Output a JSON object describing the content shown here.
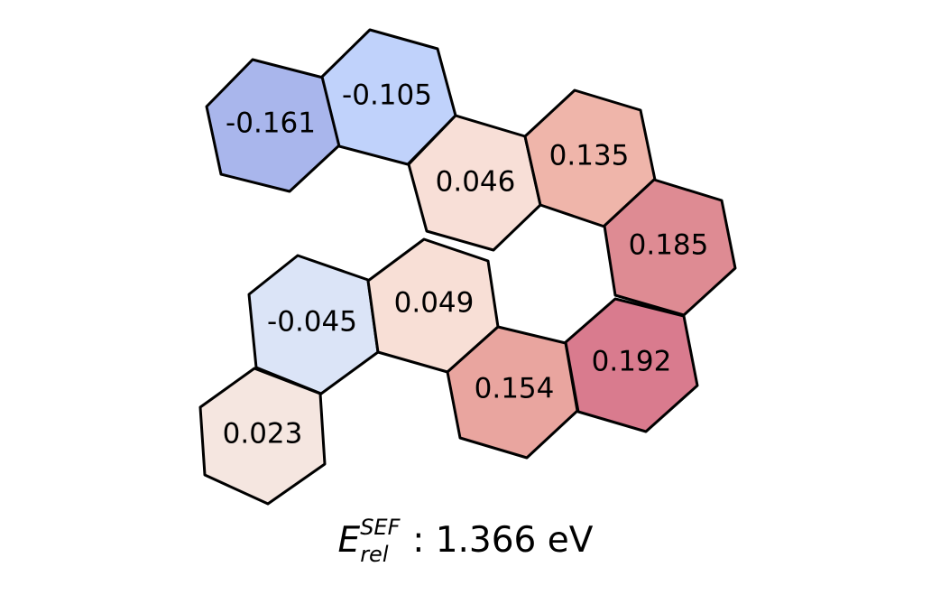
{
  "cells": [
    {
      "label": "-0.161",
      "value": -0.161,
      "color": "#a9b6ec"
    },
    {
      "label": "-0.105",
      "value": -0.105,
      "color": "#c0d2fb"
    },
    {
      "label": "0.046",
      "value": 0.046,
      "color": "#f8dfd7"
    },
    {
      "label": "0.135",
      "value": 0.135,
      "color": "#efb5aa"
    },
    {
      "label": "0.185",
      "value": 0.185,
      "color": "#de8b93"
    },
    {
      "label": "-0.045",
      "value": -0.045,
      "color": "#dbe4f7"
    },
    {
      "label": "0.049",
      "value": 0.049,
      "color": "#f8dfd6"
    },
    {
      "label": "0.154",
      "value": 0.154,
      "color": "#e9a59f"
    },
    {
      "label": "0.192",
      "value": 0.192,
      "color": "#d97b8e"
    },
    {
      "label": "0.023",
      "value": 0.023,
      "color": "#f5e6e0"
    }
  ],
  "caption": {
    "symbol": "E",
    "superscript": "SEF",
    "subscript": "rel",
    "value_text": ": 1.366 eV"
  }
}
